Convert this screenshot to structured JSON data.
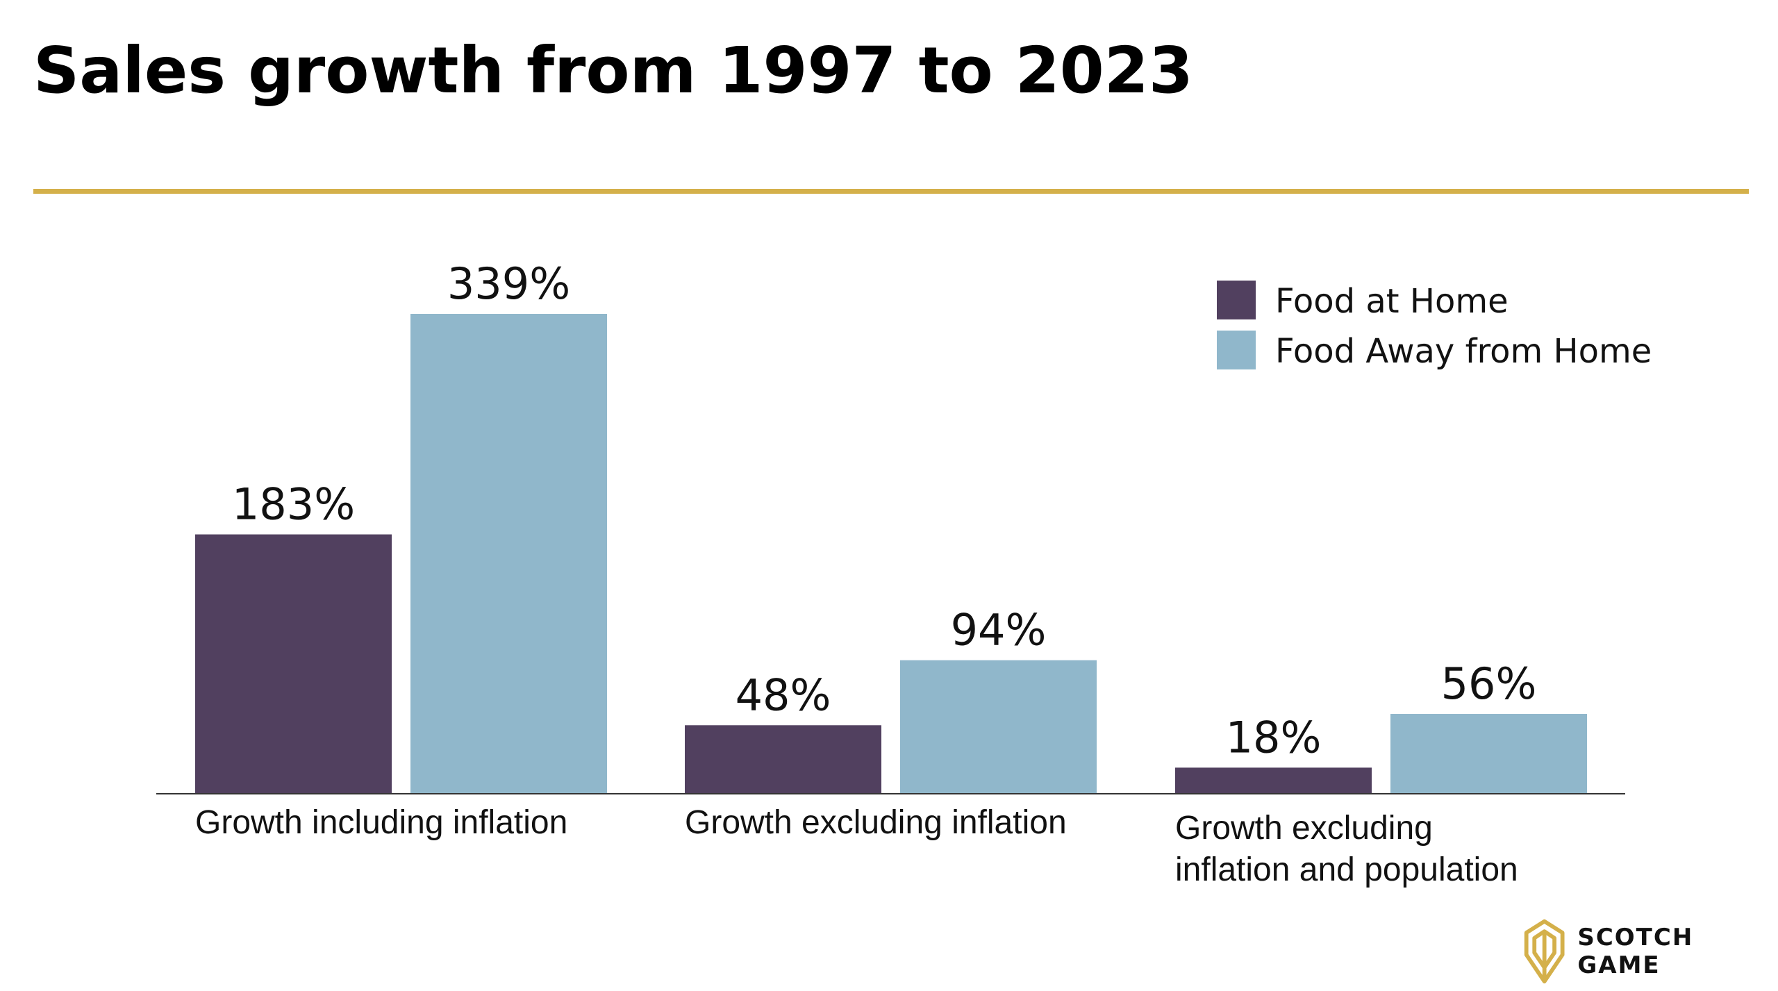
{
  "title": "Sales growth from 1997 to 2023",
  "brand": {
    "name": "SCOTCH GAME",
    "logo_icon": "wheat-leaf-logo-icon",
    "logo_color": "#d4b04a"
  },
  "colors": {
    "rule": "#d4b04a",
    "food_at_home": "#51405f",
    "food_away": "#90b7cb"
  },
  "chart_data": {
    "type": "bar",
    "categories": [
      "Growth including inflation",
      "Growth excluding inflation",
      "Growth excluding\ninflation and population"
    ],
    "series": [
      {
        "name": "Food at Home",
        "values": [
          183,
          48,
          18
        ],
        "labels": [
          "183%",
          "48%",
          "18%"
        ],
        "color": "#51405f"
      },
      {
        "name": "Food Away from Home",
        "values": [
          339,
          94,
          56
        ],
        "labels": [
          "339%",
          "94%",
          "56%"
        ],
        "color": "#90b7cb"
      }
    ],
    "ylim": [
      0,
      339
    ],
    "legend_position": "top-right",
    "grid": false
  }
}
